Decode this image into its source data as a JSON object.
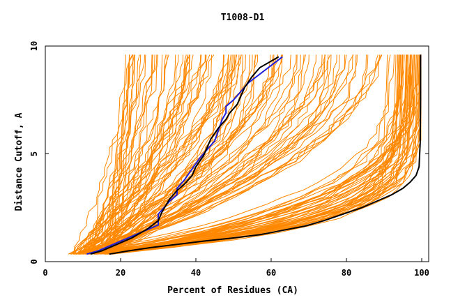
{
  "chart_data": {
    "type": "line",
    "title": "T1008-D1",
    "xlabel": "Percent of Residues (CA)",
    "ylabel": "Distance Cutoff, A",
    "xlim": [
      0,
      100
    ],
    "ylim": [
      0,
      10
    ],
    "x_ticks": [
      0,
      20,
      40,
      60,
      80,
      100
    ],
    "y_ticks": [
      0,
      5,
      10
    ],
    "grid": false,
    "legend": "none",
    "colors": {
      "background_models": "#ff8800",
      "highlight_black": "#000000",
      "highlight_blue": "#2020dd"
    },
    "series": [
      {
        "color": "#2020dd",
        "x": [
          11,
          14,
          18,
          22,
          26,
          30,
          30,
          33,
          35,
          35,
          37,
          39,
          41,
          43,
          45,
          46,
          47,
          48,
          48,
          50,
          52,
          54,
          57,
          60,
          63
        ],
        "y": [
          0.35,
          0.5,
          0.8,
          1.1,
          1.4,
          1.7,
          2.2,
          2.8,
          3.1,
          3.4,
          3.8,
          4.3,
          4.8,
          5.2,
          5.6,
          6.1,
          6.6,
          6.9,
          7.2,
          7.5,
          7.9,
          8.3,
          8.7,
          9.1,
          9.5
        ]
      },
      {
        "color": "#000000",
        "x": [
          12,
          15,
          19,
          23,
          27,
          30,
          31,
          33,
          35,
          37,
          39,
          40,
          42,
          43,
          44,
          46,
          48,
          49,
          51,
          52,
          53,
          55,
          57,
          60,
          62
        ],
        "y": [
          0.35,
          0.5,
          0.8,
          1.1,
          1.5,
          1.9,
          2.3,
          2.9,
          3.3,
          3.6,
          4.0,
          4.4,
          4.9,
          5.3,
          5.7,
          6.2,
          6.6,
          6.9,
          7.3,
          7.7,
          8.1,
          8.6,
          9.0,
          9.3,
          9.5
        ]
      },
      {
        "color": "#000000",
        "x": [
          17,
          22,
          28,
          35,
          42,
          50,
          57,
          63,
          69,
          74,
          79,
          84,
          88,
          92,
          95,
          97,
          98.5,
          99.3,
          99.6,
          99.7,
          99.7
        ],
        "y": [
          0.35,
          0.5,
          0.65,
          0.8,
          0.95,
          1.1,
          1.25,
          1.45,
          1.65,
          1.9,
          2.2,
          2.5,
          2.8,
          3.1,
          3.4,
          3.7,
          4.0,
          4.4,
          5.5,
          7.5,
          9.6
        ]
      }
    ]
  }
}
